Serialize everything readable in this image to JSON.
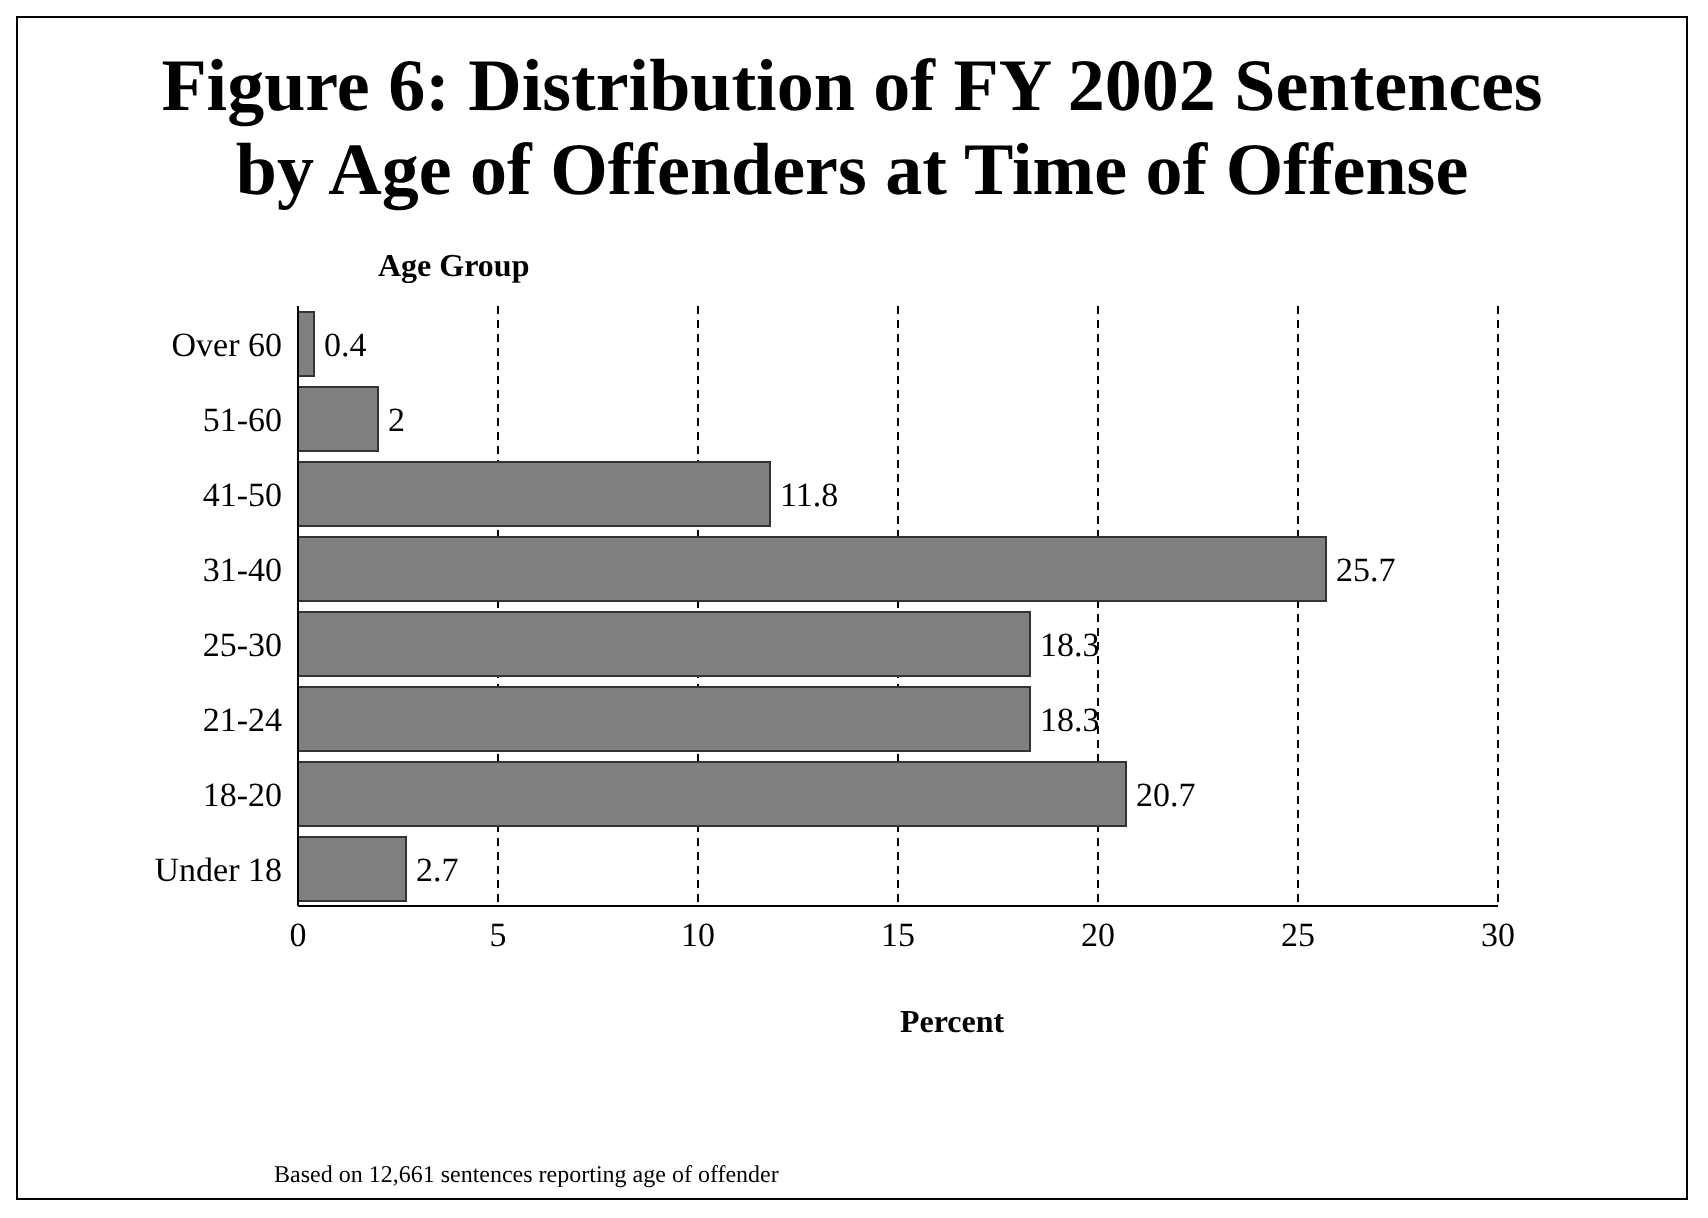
{
  "chart_data": {
    "type": "bar",
    "orientation": "horizontal",
    "title": "Figure 6: Distribution of FY 2002 Sentences by Age of Offenders at Time of Offense",
    "ylabel": "Age Group",
    "xlabel": "Percent",
    "categories": [
      "Over 60",
      "51-60",
      "41-50",
      "31-40",
      "25-30",
      "21-24",
      "18-20",
      "Under 18"
    ],
    "values": [
      0.4,
      2,
      11.8,
      25.7,
      18.3,
      18.3,
      20.7,
      2.7
    ],
    "color": "#808080",
    "data_labels": true,
    "xlim": [
      0,
      30
    ],
    "xticks": [
      0,
      5,
      10,
      15,
      20,
      25,
      30
    ],
    "grid": "x",
    "annotations": [
      "Based on 12,661 sentences reporting age of offender"
    ]
  }
}
